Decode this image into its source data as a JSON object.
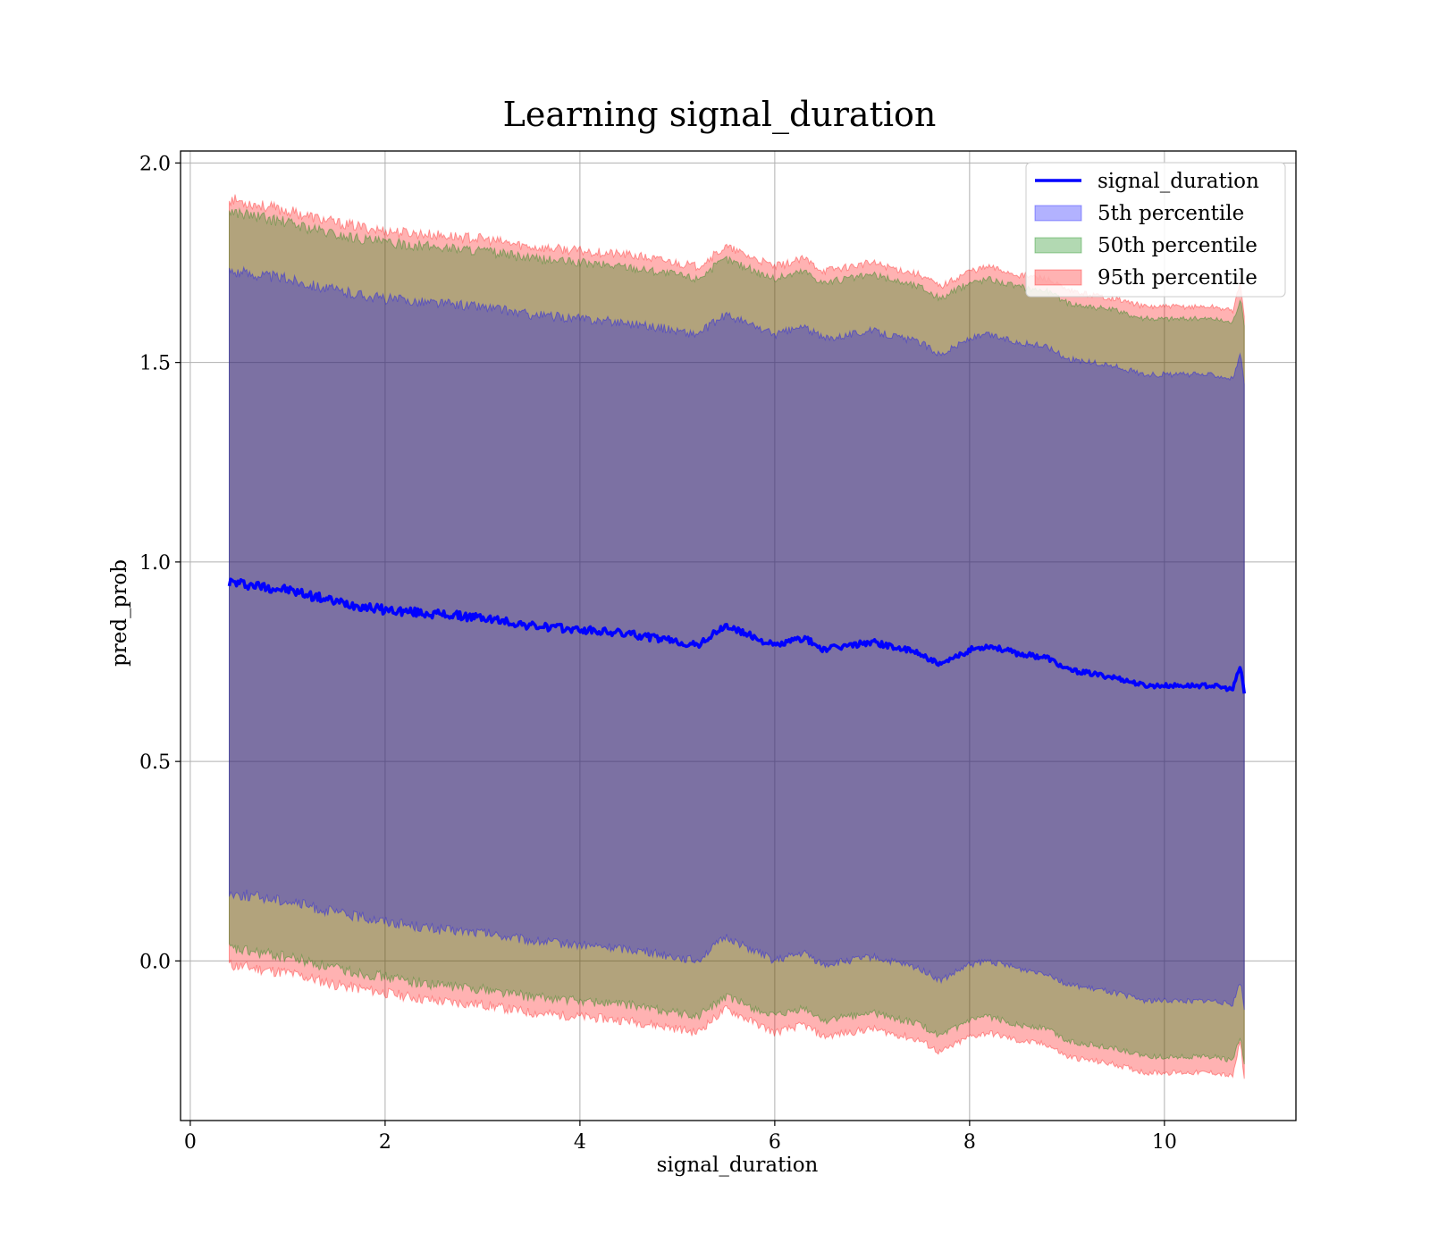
{
  "chart_data": {
    "type": "area",
    "title": "Learning signal_duration",
    "xlabel": "signal_duration",
    "ylabel": "pred_prob",
    "xlim": [
      -0.1,
      11.35
    ],
    "ylim": [
      -0.4,
      2.03
    ],
    "xticks": [
      0,
      2,
      4,
      6,
      8,
      10
    ],
    "yticks": [
      0.0,
      0.5,
      1.0,
      1.5,
      2.0
    ],
    "ytick_labels": [
      "0.0",
      "0.5",
      "1.0",
      "1.5",
      "2.0"
    ],
    "grid": true,
    "legend_position": "top-right",
    "x": [
      0.4,
      1.0,
      1.5,
      2.0,
      2.5,
      3.0,
      3.5,
      4.0,
      4.5,
      5.0,
      5.2,
      5.5,
      6.0,
      6.3,
      6.5,
      7.0,
      7.5,
      7.7,
      8.0,
      8.2,
      8.5,
      8.8,
      9.0,
      9.5,
      9.8,
      10.0,
      10.5,
      10.7,
      10.78,
      10.82
    ],
    "series": [
      {
        "name": "signal_duration",
        "kind": "line",
        "color": "#0000ff",
        "values": [
          0.95,
          0.93,
          0.9,
          0.88,
          0.87,
          0.86,
          0.84,
          0.83,
          0.82,
          0.8,
          0.79,
          0.84,
          0.79,
          0.81,
          0.78,
          0.8,
          0.77,
          0.74,
          0.78,
          0.79,
          0.77,
          0.76,
          0.73,
          0.71,
          0.69,
          0.69,
          0.69,
          0.68,
          0.74,
          0.67
        ]
      },
      {
        "name": "5th percentile",
        "kind": "band",
        "color": "#0000ff",
        "lower": [
          0.17,
          0.15,
          0.12,
          0.1,
          0.08,
          0.07,
          0.05,
          0.04,
          0.03,
          0.01,
          0.0,
          0.06,
          0.0,
          0.02,
          -0.01,
          0.01,
          -0.02,
          -0.05,
          -0.01,
          0.0,
          -0.02,
          -0.03,
          -0.06,
          -0.08,
          -0.1,
          -0.1,
          -0.1,
          -0.11,
          -0.05,
          -0.12
        ],
        "upper": [
          1.73,
          1.71,
          1.68,
          1.66,
          1.65,
          1.64,
          1.62,
          1.61,
          1.6,
          1.58,
          1.57,
          1.62,
          1.57,
          1.59,
          1.56,
          1.58,
          1.55,
          1.52,
          1.56,
          1.57,
          1.55,
          1.54,
          1.51,
          1.49,
          1.47,
          1.47,
          1.47,
          1.46,
          1.52,
          1.45
        ]
      },
      {
        "name": "50th percentile",
        "kind": "band",
        "color": "#008000",
        "lower": [
          0.03,
          0.01,
          -0.02,
          -0.04,
          -0.06,
          -0.07,
          -0.09,
          -0.1,
          -0.11,
          -0.13,
          -0.14,
          -0.09,
          -0.14,
          -0.12,
          -0.15,
          -0.13,
          -0.16,
          -0.19,
          -0.15,
          -0.14,
          -0.16,
          -0.17,
          -0.2,
          -0.22,
          -0.24,
          -0.24,
          -0.24,
          -0.25,
          -0.19,
          -0.26
        ],
        "upper": [
          1.88,
          1.85,
          1.82,
          1.8,
          1.79,
          1.78,
          1.76,
          1.75,
          1.74,
          1.72,
          1.71,
          1.76,
          1.71,
          1.73,
          1.7,
          1.72,
          1.69,
          1.66,
          1.7,
          1.71,
          1.69,
          1.68,
          1.65,
          1.63,
          1.61,
          1.61,
          1.61,
          1.6,
          1.66,
          1.59
        ]
      },
      {
        "name": "95th percentile",
        "kind": "band",
        "color": "#ff0000",
        "lower": [
          -0.01,
          -0.03,
          -0.06,
          -0.08,
          -0.1,
          -0.11,
          -0.13,
          -0.14,
          -0.15,
          -0.17,
          -0.18,
          -0.12,
          -0.18,
          -0.16,
          -0.19,
          -0.17,
          -0.2,
          -0.23,
          -0.19,
          -0.18,
          -0.2,
          -0.21,
          -0.24,
          -0.26,
          -0.28,
          -0.28,
          -0.28,
          -0.29,
          -0.2,
          -0.3
        ],
        "upper": [
          1.91,
          1.88,
          1.85,
          1.83,
          1.82,
          1.81,
          1.79,
          1.78,
          1.77,
          1.75,
          1.74,
          1.79,
          1.74,
          1.76,
          1.73,
          1.75,
          1.72,
          1.69,
          1.73,
          1.74,
          1.72,
          1.71,
          1.68,
          1.66,
          1.64,
          1.64,
          1.64,
          1.63,
          1.7,
          1.62
        ]
      }
    ]
  }
}
